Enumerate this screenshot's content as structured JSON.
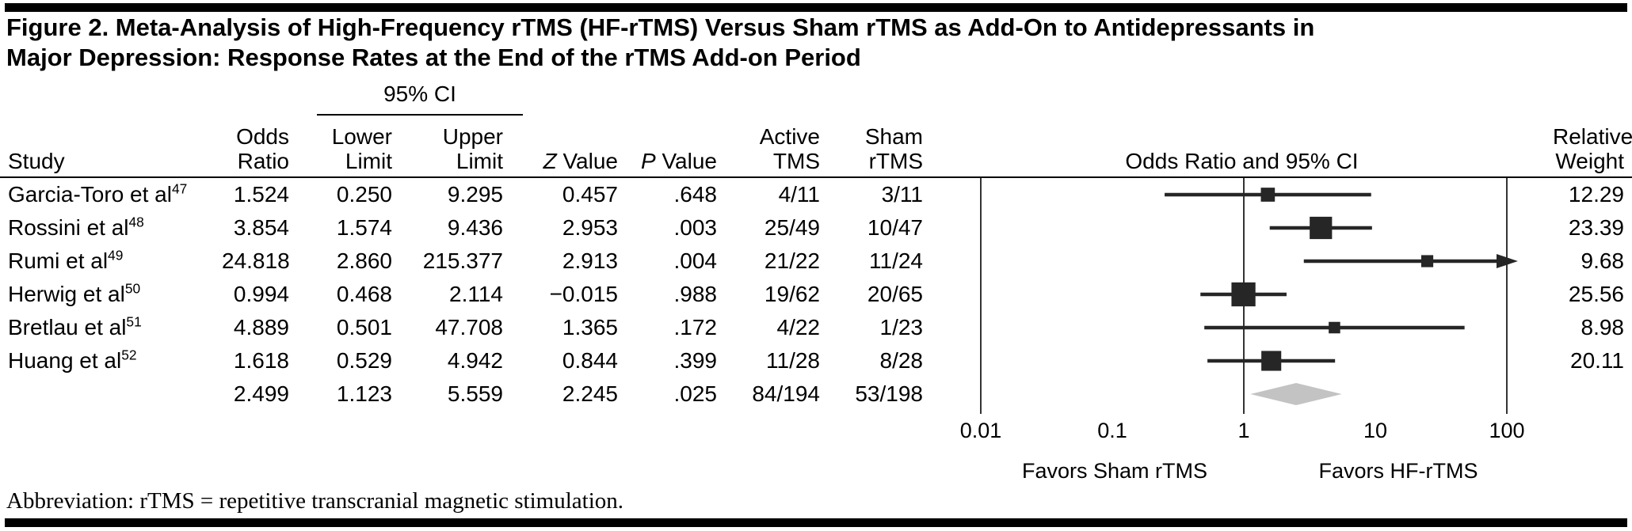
{
  "figure": {
    "title": "Figure 2. Meta-Analysis of High-Frequency rTMS (HF-rTMS) Versus Sham rTMS as Add-On to Antidepressants in Major Depression: Response Rates at the End of the rTMS Add-on Period",
    "footnote": "Abbreviation: rTMS = repetitive transcranial magnetic stimulation."
  },
  "table": {
    "headers": {
      "study": "Study",
      "odds_ratio": [
        "Odds",
        "Ratio"
      ],
      "ci_group": "95% CI",
      "lower": [
        "Lower",
        "Limit"
      ],
      "upper": [
        "Upper",
        "Limit"
      ],
      "z_value": {
        "italic": "Z",
        "rest": "Value"
      },
      "p_value": {
        "italic": "P",
        "rest": "Value"
      },
      "active": [
        "Active",
        "TMS"
      ],
      "sham": [
        "Sham",
        "rTMS"
      ],
      "plot": "Odds Ratio and 95% CI",
      "weight": [
        "Relative",
        "Weight"
      ]
    },
    "rows": [
      {
        "study": "Garcia-Toro et al",
        "ref": "47",
        "odds_ratio": "1.524",
        "lower": "0.250",
        "upper": "9.295",
        "z": "0.457",
        "p": ".648",
        "active": "4/11",
        "sham": "3/11",
        "weight": "12.29"
      },
      {
        "study": "Rossini et al",
        "ref": "48",
        "odds_ratio": "3.854",
        "lower": "1.574",
        "upper": "9.436",
        "z": "2.953",
        "p": ".003",
        "active": "25/49",
        "sham": "10/47",
        "weight": "23.39"
      },
      {
        "study": "Rumi et al",
        "ref": "49",
        "odds_ratio": "24.818",
        "lower": "2.860",
        "upper": "215.377",
        "z": "2.913",
        "p": ".004",
        "active": "21/22",
        "sham": "11/24",
        "weight": "9.68"
      },
      {
        "study": "Herwig et al",
        "ref": "50",
        "odds_ratio": "0.994",
        "lower": "0.468",
        "upper": "2.114",
        "z": "−0.015",
        "p": ".988",
        "active": "19/62",
        "sham": "20/65",
        "weight": "25.56"
      },
      {
        "study": "Bretlau et al",
        "ref": "51",
        "odds_ratio": "4.889",
        "lower": "0.501",
        "upper": "47.708",
        "z": "1.365",
        "p": ".172",
        "active": "4/22",
        "sham": "1/23",
        "weight": "8.98"
      },
      {
        "study": "Huang et al",
        "ref": "52",
        "odds_ratio": "1.618",
        "lower": "0.529",
        "upper": "4.942",
        "z": "0.844",
        "p": ".399",
        "active": "11/28",
        "sham": "8/28",
        "weight": "20.11"
      }
    ],
    "overall": {
      "study": "",
      "odds_ratio": "2.499",
      "lower": "1.123",
      "upper": "5.559",
      "z": "2.245",
      "p": ".025",
      "active": "84/194",
      "sham": "53/198",
      "weight": ""
    }
  },
  "chart_data": {
    "type": "forest",
    "x_scale": "log",
    "x_range": [
      0.01,
      100
    ],
    "x_ticks": [
      "0.01",
      "0.1",
      "1",
      "10",
      "100"
    ],
    "axis_lines": [
      0.01,
      1,
      100
    ],
    "axis_title": "Odds Ratio and 95% CI",
    "left_label": "Favors Sham rTMS",
    "right_label": "Favors HF-rTMS",
    "marker_color": "#262626",
    "diamond_color": "#c3c3c3",
    "studies": [
      {
        "name": "Garcia-Toro et al",
        "ref": "47",
        "or": 1.524,
        "lower": 0.25,
        "upper": 9.295,
        "weight": 12.29
      },
      {
        "name": "Rossini et al",
        "ref": "48",
        "or": 3.854,
        "lower": 1.574,
        "upper": 9.436,
        "weight": 23.39
      },
      {
        "name": "Rumi et al",
        "ref": "49",
        "or": 24.818,
        "lower": 2.86,
        "upper": 215.377,
        "weight": 9.68
      },
      {
        "name": "Herwig et al",
        "ref": "50",
        "or": 0.994,
        "lower": 0.468,
        "upper": 2.114,
        "weight": 25.56
      },
      {
        "name": "Bretlau et al",
        "ref": "51",
        "or": 4.889,
        "lower": 0.501,
        "upper": 47.708,
        "weight": 8.98
      },
      {
        "name": "Huang et al",
        "ref": "52",
        "or": 1.618,
        "lower": 0.529,
        "upper": 4.942,
        "weight": 20.11
      }
    ],
    "overall": {
      "or": 2.499,
      "lower": 1.123,
      "upper": 5.559
    }
  }
}
